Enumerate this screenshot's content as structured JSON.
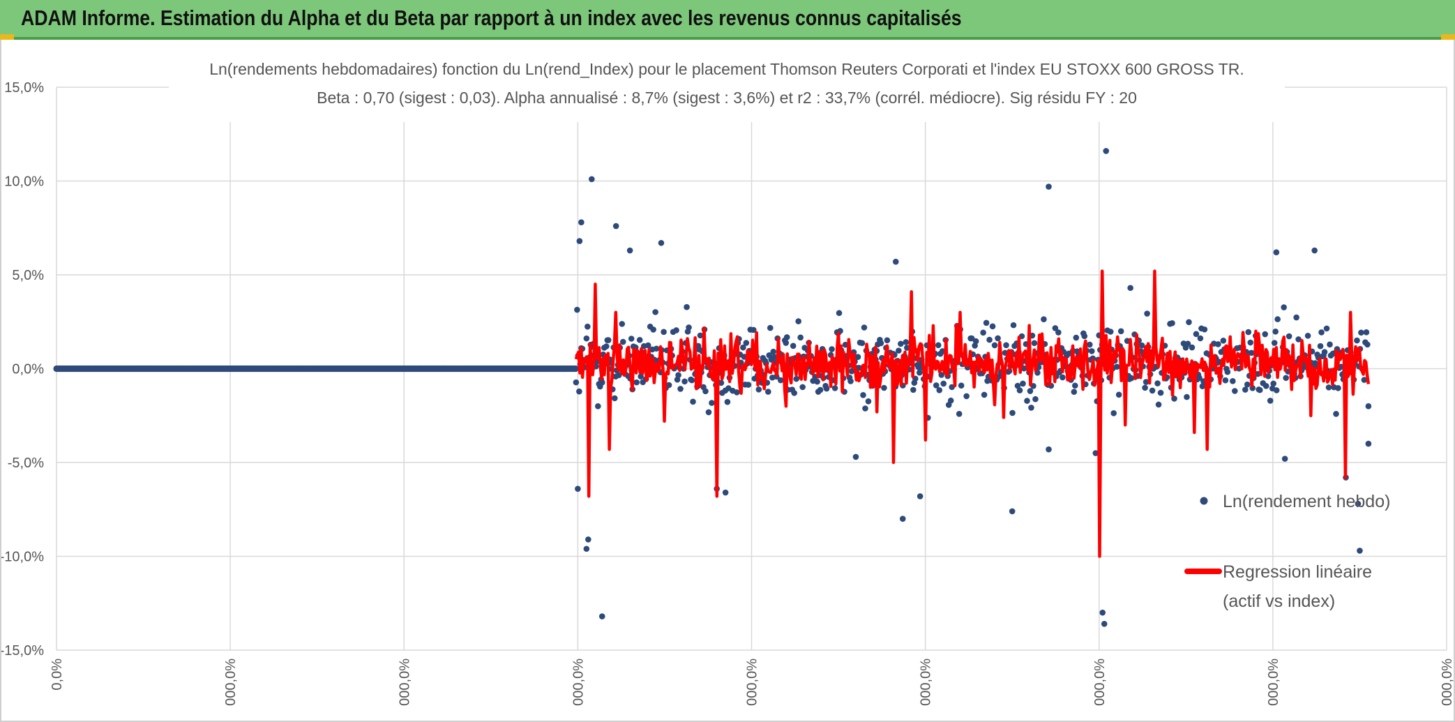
{
  "header": {
    "title": "ADAM Informe. Estimation du Alpha et du Beta par rapport à un index avec les revenus connus capitalisés"
  },
  "chart_data": {
    "type": "scatter",
    "title": "Ln(rendements hebdomadaires) fonction du Ln(rend_Index) pour le placement Thomson Reuters Corporati et l'index EU STOXX 600 GROSS TR.",
    "subtitle": "Beta : 0,70 (sigest : 0,03). Alpha annualisé : 8,7% (sigest : 3,6%) et r2 : 33,7% (corrél. médiocre). Sig résidu FY : 20",
    "xlabel": "",
    "ylabel": "",
    "ylim": [
      -15,
      15
    ],
    "xlim": [
      0,
      8
    ],
    "y_ticks": [
      "15,0%",
      "10,0%",
      "5,0%",
      "0,0%",
      "-5,0%",
      "-10,0%",
      "-15,0%"
    ],
    "x_ticks": [
      "0,0%",
      "000,0%",
      "000,0%",
      "000,0%",
      "000,0%",
      "000,0%",
      "000,0%",
      "000,0%",
      "000,0%"
    ],
    "legend_position": "right",
    "grid": true,
    "series": [
      {
        "name": "Ln(rendement hebdo)",
        "kind": "scatter",
        "color": "#2e4a7a",
        "zero_segment": [
          0,
          2.99
        ],
        "outliers": [
          [
            3.0,
            -6.4
          ],
          [
            3.01,
            6.8
          ],
          [
            3.02,
            7.8
          ],
          [
            3.05,
            -9.6
          ],
          [
            3.06,
            -9.1
          ],
          [
            3.08,
            10.1
          ],
          [
            3.14,
            -13.2
          ],
          [
            3.22,
            7.6
          ],
          [
            3.3,
            6.3
          ],
          [
            3.48,
            6.7
          ],
          [
            3.8,
            -6.4
          ],
          [
            3.85,
            -6.6
          ],
          [
            4.6,
            -4.7
          ],
          [
            4.83,
            5.7
          ],
          [
            4.87,
            -8.0
          ],
          [
            4.97,
            -6.8
          ],
          [
            5.5,
            -7.6
          ],
          [
            5.71,
            9.7
          ],
          [
            5.71,
            -4.3
          ],
          [
            5.98,
            -4.5
          ],
          [
            6.02,
            -13.0
          ],
          [
            6.03,
            -13.6
          ],
          [
            6.04,
            11.6
          ],
          [
            7.02,
            6.2
          ],
          [
            7.24,
            6.3
          ],
          [
            7.42,
            -5.8
          ],
          [
            7.49,
            -7.2
          ],
          [
            7.5,
            -9.7
          ],
          [
            7.55,
            -4.0
          ]
        ]
      },
      {
        "name": "Regression linéaire (actif vs index)",
        "legend_lines": [
          "Regression linéaire",
          "(actif vs index)"
        ],
        "kind": "line",
        "color": "#ff0000",
        "x_range": [
          2.99,
          7.55
        ],
        "spikes": [
          [
            3.06,
            -6.8
          ],
          [
            3.1,
            4.5
          ],
          [
            3.18,
            -4.3
          ],
          [
            3.22,
            3.0
          ],
          [
            3.5,
            -2.8
          ],
          [
            3.8,
            -6.8
          ],
          [
            3.92,
            1.7
          ],
          [
            4.2,
            -2.0
          ],
          [
            4.5,
            1.9
          ],
          [
            4.72,
            -2.3
          ],
          [
            4.82,
            -5.0
          ],
          [
            4.92,
            4.1
          ],
          [
            5.0,
            -3.8
          ],
          [
            5.2,
            3.0
          ],
          [
            5.45,
            -2.6
          ],
          [
            5.6,
            2.3
          ],
          [
            6.0,
            -10.0
          ],
          [
            6.02,
            5.2
          ],
          [
            6.15,
            -3.0
          ],
          [
            6.32,
            5.2
          ],
          [
            6.55,
            -3.4
          ],
          [
            6.62,
            -4.3
          ],
          [
            6.9,
            2.0
          ],
          [
            7.22,
            -2.5
          ],
          [
            7.42,
            -5.8
          ],
          [
            7.45,
            3.0
          ]
        ]
      }
    ]
  }
}
